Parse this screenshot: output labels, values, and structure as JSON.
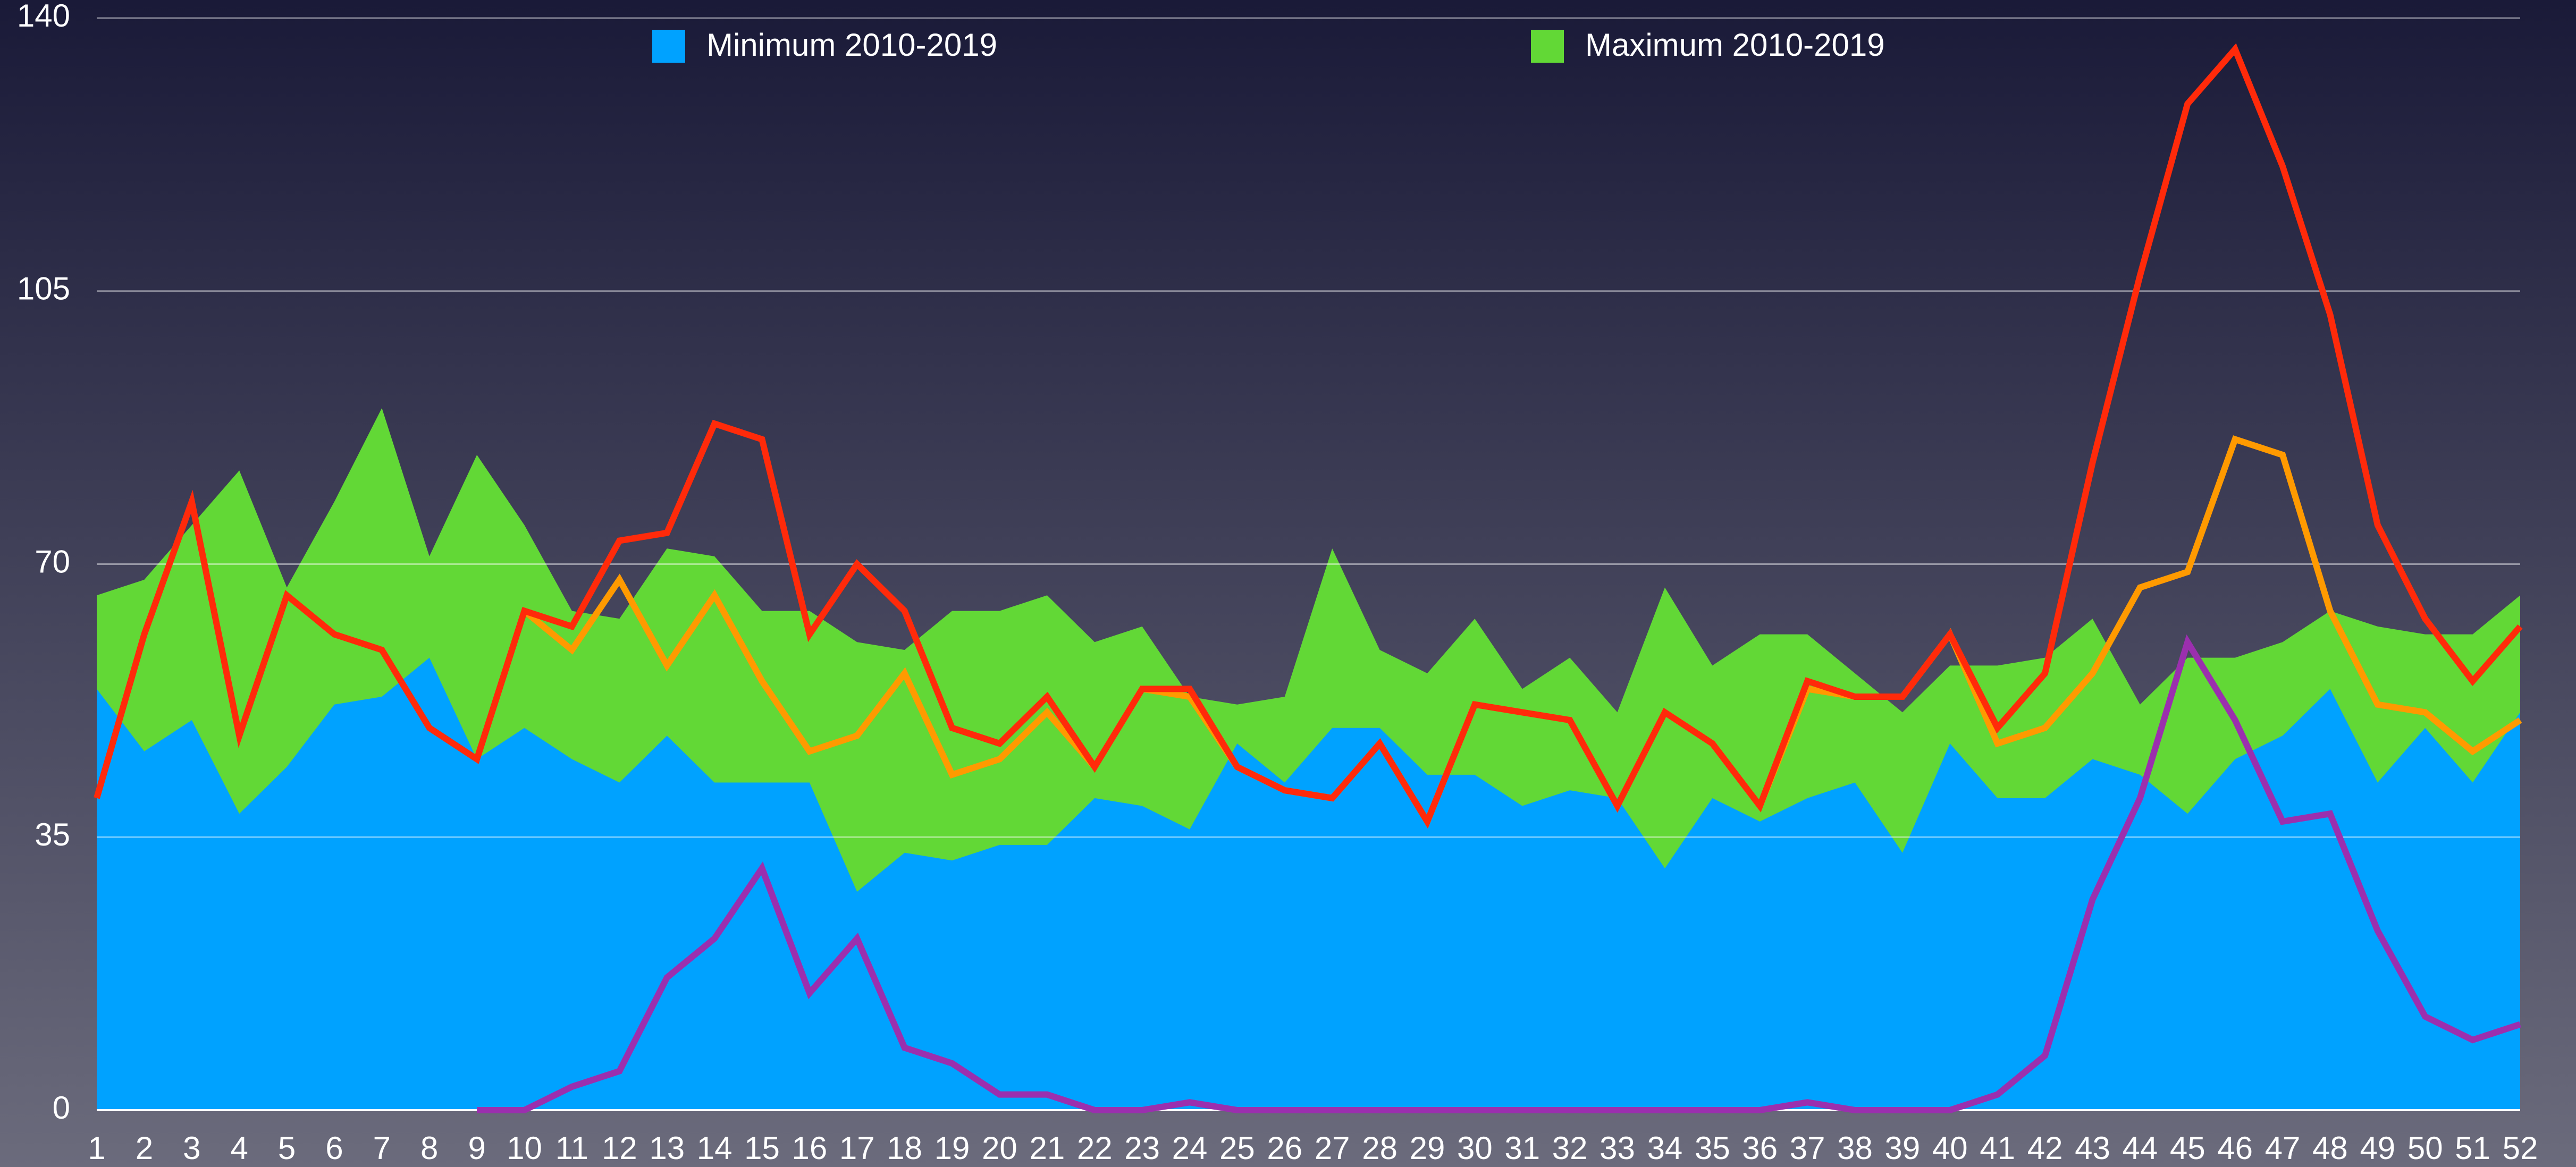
{
  "chart_data": {
    "type": "line",
    "categories": [
      "1",
      "2",
      "3",
      "4",
      "5",
      "6",
      "7",
      "8",
      "9",
      "10",
      "11",
      "12",
      "13",
      "14",
      "15",
      "16",
      "17",
      "18",
      "19",
      "20",
      "21",
      "22",
      "23",
      "24",
      "25",
      "26",
      "27",
      "28",
      "29",
      "30",
      "31",
      "32",
      "33",
      "34",
      "35",
      "36",
      "37",
      "38",
      "39",
      "40",
      "41",
      "42",
      "43",
      "44",
      "45",
      "46",
      "47",
      "48",
      "49",
      "50",
      "51",
      "52"
    ],
    "ylim": [
      0,
      140
    ],
    "yticks": [
      0,
      35,
      70,
      105,
      140
    ],
    "grid": true,
    "legend": "top",
    "series": [
      {
        "name": "Maximum 2010-2019",
        "kind": "area",
        "color": "#62d836",
        "values": [
          66,
          68,
          75,
          82,
          67,
          78,
          90,
          71,
          84,
          75,
          64,
          63,
          72,
          71,
          64,
          64,
          60,
          59,
          64,
          64,
          66,
          60,
          62,
          53,
          52,
          53,
          72,
          59,
          56,
          63,
          54,
          58,
          51,
          67,
          57,
          61,
          61,
          56,
          51,
          57,
          57,
          58,
          63,
          52,
          58,
          58,
          60,
          64,
          62,
          61,
          61,
          66
        ]
      },
      {
        "name": "Minimum 2010-2019",
        "kind": "area",
        "color": "#00a2ff",
        "values": [
          54,
          46,
          50,
          38,
          44,
          52,
          53,
          58,
          45,
          49,
          45,
          42,
          48,
          42,
          42,
          42,
          28,
          33,
          32,
          34,
          34,
          40,
          39,
          36,
          47,
          42,
          49,
          49,
          43,
          43,
          39,
          41,
          40,
          31,
          40,
          37,
          40,
          42,
          33,
          47,
          40,
          40,
          45,
          43,
          38,
          45,
          48,
          54,
          42,
          49,
          42,
          51
        ]
      },
      {
        "kind": "line",
        "color": "#ff9a00",
        "values": [
          null,
          null,
          null,
          null,
          null,
          null,
          null,
          null,
          null,
          64,
          59,
          68,
          57,
          66,
          55,
          46,
          48,
          56,
          43,
          45,
          51,
          44,
          54,
          53,
          44,
          41,
          40,
          47,
          37,
          52,
          51,
          50,
          39,
          51,
          47,
          39,
          54,
          53,
          53,
          61,
          47,
          49,
          56,
          67,
          69,
          86,
          84,
          64,
          52,
          51,
          46,
          50
        ]
      },
      {
        "kind": "line",
        "color": "#ff2a0a",
        "values": [
          40,
          61,
          78,
          48,
          66,
          61,
          59,
          49,
          45,
          64,
          62,
          73,
          74,
          88,
          86,
          61,
          70,
          64,
          49,
          47,
          53,
          44,
          54,
          54,
          44,
          41,
          40,
          47,
          37,
          52,
          51,
          50,
          39,
          51,
          47,
          39,
          55,
          53,
          53,
          61,
          49,
          56,
          83,
          107,
          129,
          136,
          121,
          102,
          75,
          63,
          55,
          62
        ]
      },
      {
        "kind": "line",
        "color": "#9b2fae",
        "values": [
          null,
          null,
          null,
          null,
          null,
          null,
          null,
          null,
          0,
          0,
          3,
          5,
          17,
          22,
          31,
          15,
          22,
          8,
          6,
          2,
          2,
          0,
          0,
          1,
          0,
          0,
          0,
          0,
          0,
          0,
          0,
          0,
          0,
          0,
          0,
          0,
          1,
          0,
          0,
          0,
          2,
          7,
          27,
          40,
          60,
          50,
          37,
          38,
          23,
          12,
          9,
          11
        ]
      }
    ]
  }
}
